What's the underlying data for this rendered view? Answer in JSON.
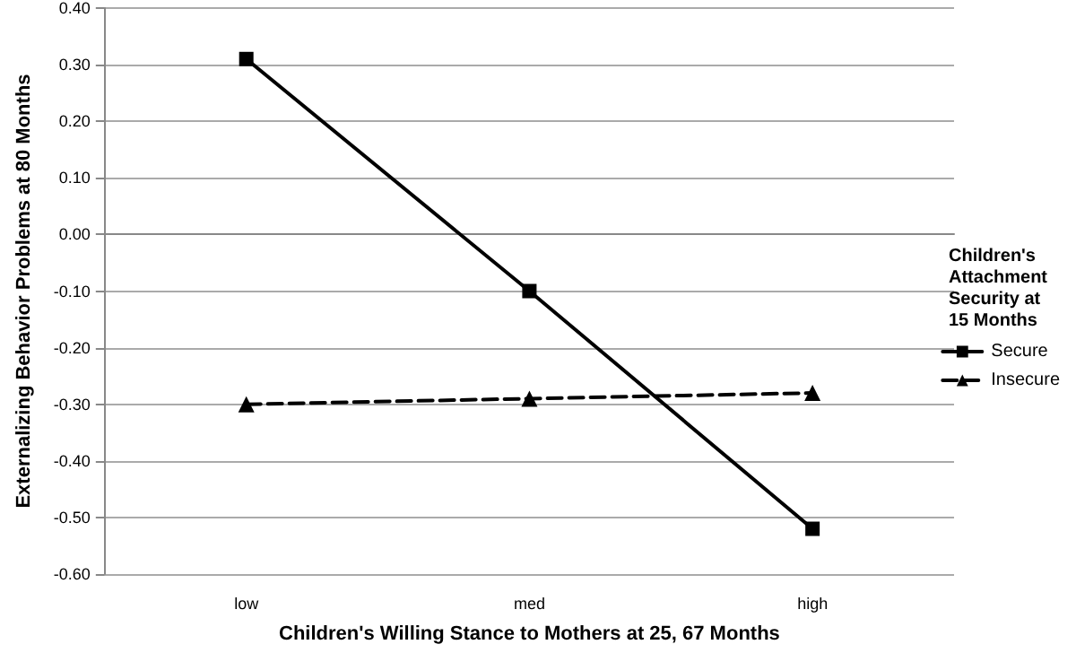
{
  "chart_data": {
    "type": "line",
    "xlabel": "Children's Willing Stance to Mothers at 25, 67 Months",
    "ylabel": "Externalizing Behavior Problems at 80 Months",
    "legend_title": "Children's Attachment Security at 15 Months",
    "categories": [
      "low",
      "med",
      "high"
    ],
    "series": [
      {
        "name": "Secure",
        "color": "#000000",
        "values": [
          0.31,
          -0.1,
          -0.52
        ],
        "marker": "square",
        "line_style": "solid"
      },
      {
        "name": "Insecure",
        "color": "#000000",
        "values": [
          -0.3,
          -0.29,
          -0.28
        ],
        "marker": "triangle",
        "line_style": "dashed"
      }
    ],
    "ylim": [
      -0.6,
      0.4
    ],
    "yticks": [
      {
        "value": -0.6,
        "label": "-0.60"
      },
      {
        "value": -0.5,
        "label": "-0.50"
      },
      {
        "value": -0.4,
        "label": "-0.40"
      },
      {
        "value": -0.3,
        "label": "-0.30"
      },
      {
        "value": -0.2,
        "label": "-0.20"
      },
      {
        "value": -0.1,
        "label": "-0.10"
      },
      {
        "value": 0,
        "label": "0.00"
      },
      {
        "value": 0.1,
        "label": "0.10"
      },
      {
        "value": 0.2,
        "label": "0.20"
      },
      {
        "value": 0.3,
        "label": "0.30"
      },
      {
        "value": 0.4,
        "label": "0.40"
      }
    ],
    "grid": "y",
    "legend": "right"
  }
}
